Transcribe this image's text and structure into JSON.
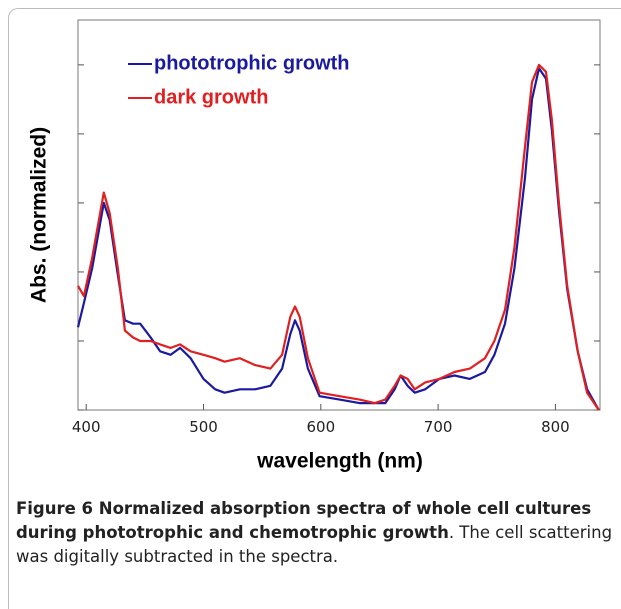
{
  "chart_data": {
    "type": "line",
    "y_label": "Abs. (normalized)",
    "x_label": "wavelength (nm)",
    "x": [
      393,
      398,
      405,
      415,
      420,
      427,
      433,
      440,
      446,
      455,
      463,
      472,
      480,
      489,
      500,
      510,
      518,
      531,
      544,
      557,
      567,
      574,
      578,
      582,
      589,
      599,
      616,
      633,
      646,
      655,
      663,
      668,
      674,
      680,
      689,
      701,
      714,
      727,
      740,
      748,
      757,
      765,
      774,
      780,
      786,
      792,
      797,
      803,
      810,
      819,
      827,
      837
    ],
    "series": [
      {
        "name": "phototrophic growth",
        "color": "#1a1aa0",
        "values": [
          0.24,
          0.31,
          0.41,
          0.6,
          0.55,
          0.39,
          0.26,
          0.25,
          0.25,
          0.21,
          0.17,
          0.16,
          0.18,
          0.15,
          0.09,
          0.06,
          0.05,
          0.06,
          0.06,
          0.07,
          0.12,
          0.22,
          0.26,
          0.23,
          0.12,
          0.04,
          0.03,
          0.02,
          0.02,
          0.02,
          0.06,
          0.1,
          0.07,
          0.05,
          0.06,
          0.09,
          0.1,
          0.09,
          0.11,
          0.16,
          0.25,
          0.41,
          0.67,
          0.9,
          0.99,
          0.96,
          0.81,
          0.58,
          0.35,
          0.17,
          0.06,
          0
        ]
      },
      {
        "name": "dark growth",
        "color": "#e02020",
        "values": [
          0.36,
          0.33,
          0.44,
          0.63,
          0.57,
          0.41,
          0.23,
          0.21,
          0.2,
          0.2,
          0.19,
          0.18,
          0.19,
          0.17,
          0.16,
          0.15,
          0.14,
          0.15,
          0.13,
          0.12,
          0.16,
          0.27,
          0.3,
          0.27,
          0.15,
          0.05,
          0.04,
          0.03,
          0.02,
          0.03,
          0.07,
          0.1,
          0.09,
          0.06,
          0.08,
          0.09,
          0.11,
          0.12,
          0.15,
          0.2,
          0.29,
          0.47,
          0.76,
          0.95,
          1.0,
          0.98,
          0.84,
          0.6,
          0.36,
          0.17,
          0.05,
          0
        ]
      }
    ],
    "xlim": [
      393,
      838
    ],
    "xticks": [
      400,
      500,
      600,
      700,
      800
    ],
    "ylim": [
      0,
      1.13
    ],
    "yticks": [
      0,
      0.2,
      0.4,
      0.6,
      0.8,
      1.0
    ],
    "legend": "top-left"
  },
  "caption": {
    "bold": "Figure 6 Normalized absorption spectra of whole cell cultures during phototrophic and chemotrophic growth",
    "text": ". The cell scattering was digitally subtracted in the spectra."
  }
}
